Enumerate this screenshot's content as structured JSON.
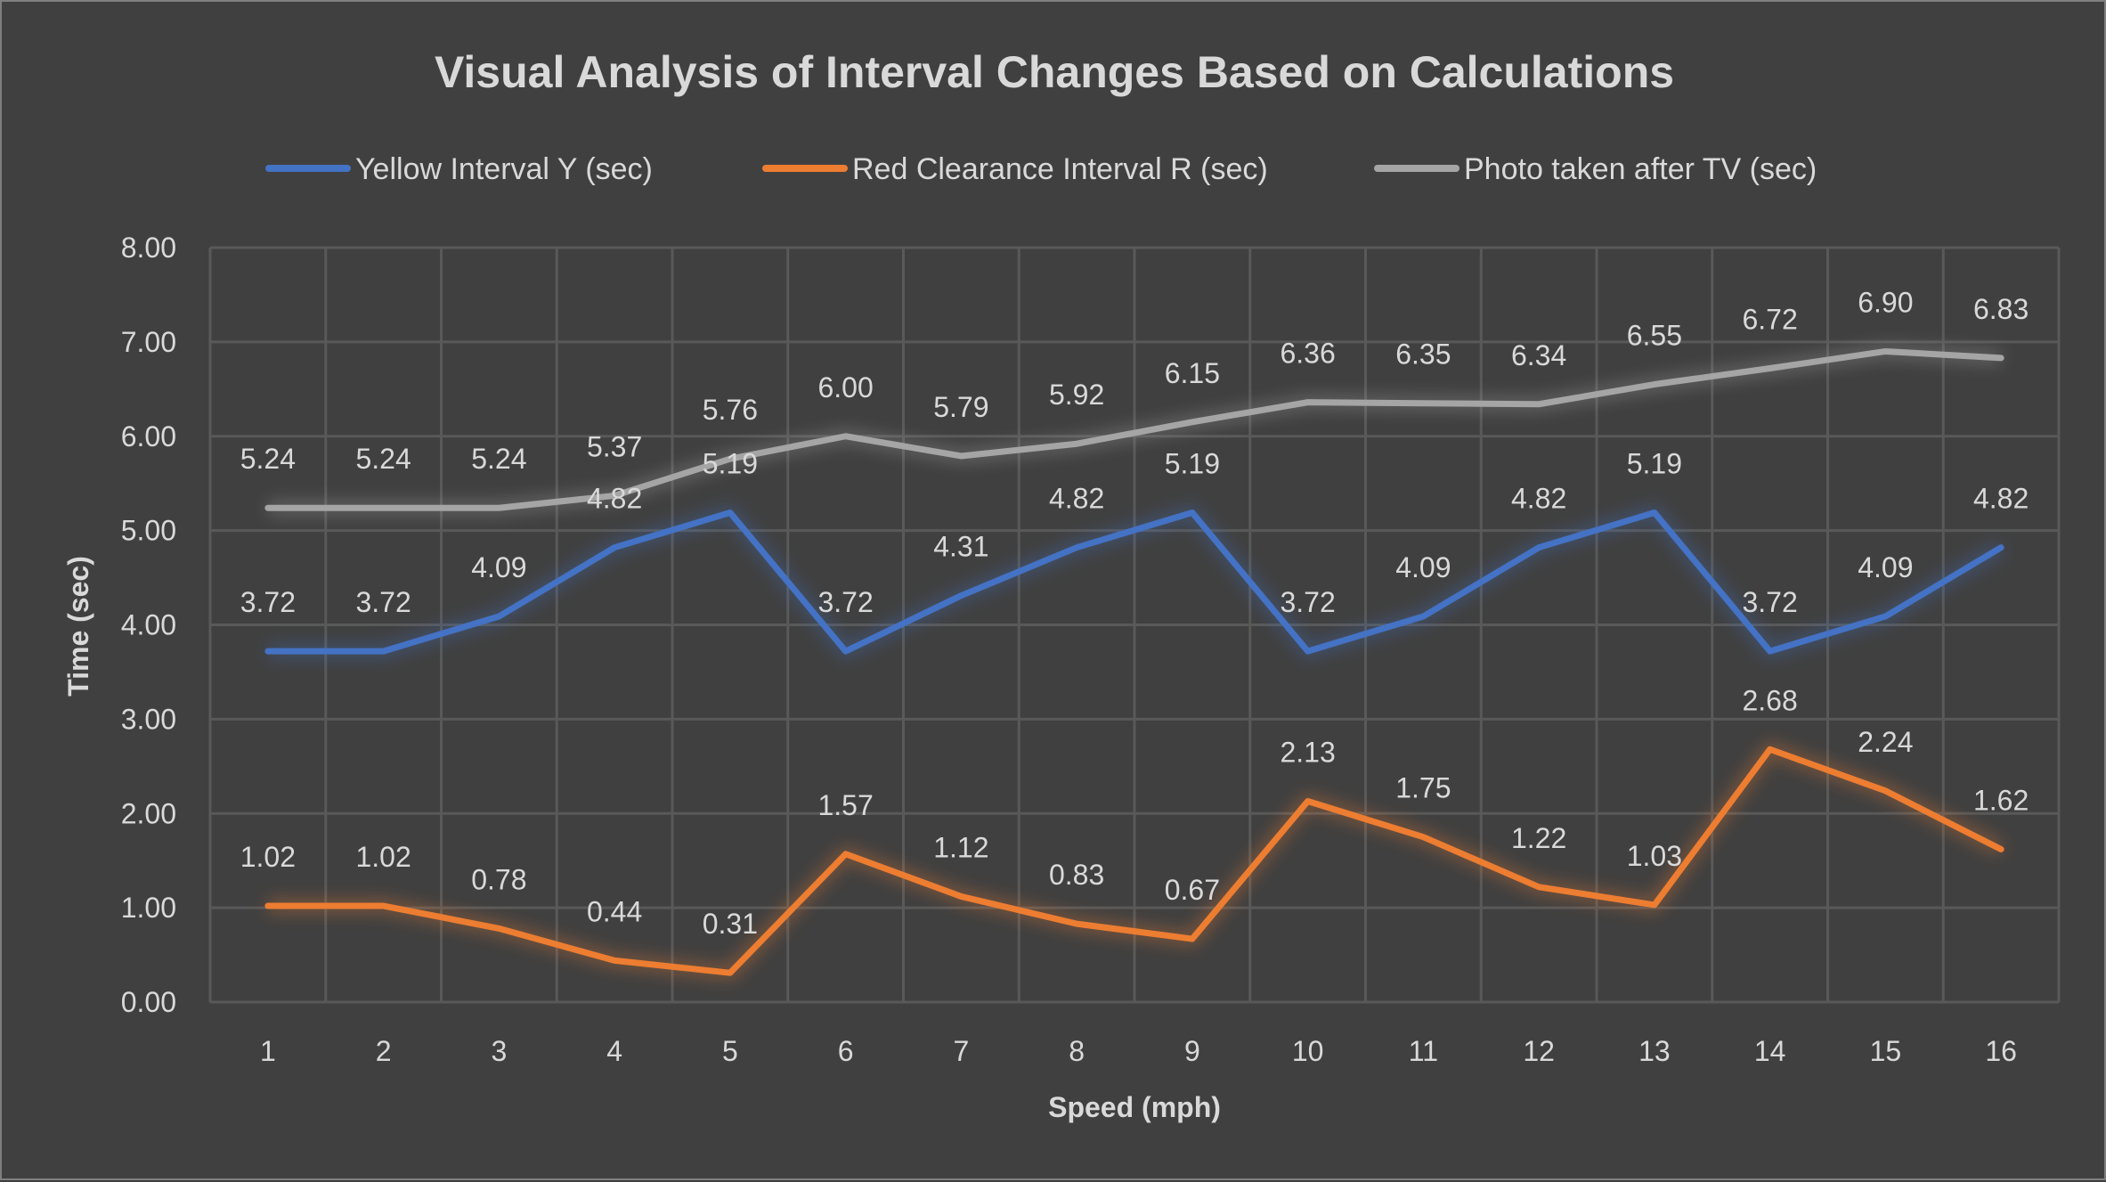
{
  "chart_data": {
    "type": "line",
    "title": "Visual Analysis of Interval Changes Based on Calculations",
    "xlabel": "Speed (mph)",
    "ylabel": "Time (sec)",
    "categories": [
      "1",
      "2",
      "3",
      "4",
      "5",
      "6",
      "7",
      "8",
      "9",
      "10",
      "11",
      "12",
      "13",
      "14",
      "15",
      "16"
    ],
    "ylim": [
      0,
      8
    ],
    "yticks": [
      "0.00",
      "1.00",
      "2.00",
      "3.00",
      "4.00",
      "5.00",
      "6.00",
      "7.00",
      "8.00"
    ],
    "grid": true,
    "legend_position": "top",
    "series": [
      {
        "name": "Yellow Interval Y (sec)",
        "color": "#4472C4",
        "values": [
          3.72,
          3.72,
          4.09,
          4.82,
          5.19,
          3.72,
          4.31,
          4.82,
          5.19,
          3.72,
          4.09,
          4.82,
          5.19,
          3.72,
          4.09,
          4.82
        ],
        "labels": [
          "3.72",
          "3.72",
          "4.09",
          "4.82",
          "5.19",
          "3.72",
          "4.31",
          "4.82",
          "5.19",
          "3.72",
          "4.09",
          "4.82",
          "5.19",
          "3.72",
          "4.09",
          "4.82"
        ]
      },
      {
        "name": "Red Clearance Interval R (sec)",
        "color": "#ED7D31",
        "values": [
          1.02,
          1.02,
          0.78,
          0.44,
          0.31,
          1.57,
          1.12,
          0.83,
          0.67,
          2.13,
          1.75,
          1.22,
          1.03,
          2.68,
          2.24,
          1.62
        ],
        "labels": [
          "1.02",
          "1.02",
          "0.78",
          "0.44",
          "0.31",
          "1.57",
          "1.12",
          "0.83",
          "0.67",
          "2.13",
          "1.75",
          "1.22",
          "1.03",
          "2.68",
          "2.24",
          "1.62"
        ]
      },
      {
        "name": "Photo taken after TV (sec)",
        "color": "#A5A5A5",
        "values": [
          5.24,
          5.24,
          5.24,
          5.37,
          5.76,
          6.0,
          5.79,
          5.92,
          6.15,
          6.36,
          6.35,
          6.34,
          6.55,
          6.72,
          6.9,
          6.83
        ],
        "labels": [
          "5.24",
          "5.24",
          "5.24",
          "5.37",
          "5.76",
          "6.00",
          "5.79",
          "5.92",
          "6.15",
          "6.36",
          "6.35",
          "6.34",
          "6.55",
          "6.72",
          "6.90",
          "6.83"
        ]
      }
    ]
  }
}
